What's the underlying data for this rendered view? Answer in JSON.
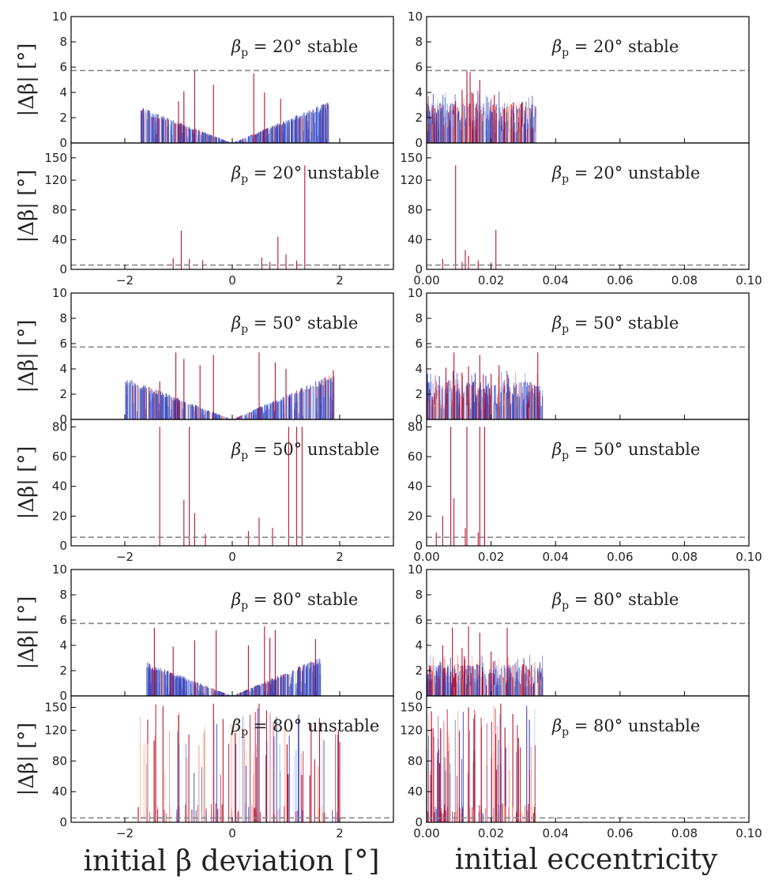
{
  "chart_data": {
    "type": "bar",
    "layout": "3 groups x 2 rows x 2 columns",
    "columns": [
      {
        "xlabel": "initial β deviation [°]",
        "xlim": [
          -3,
          3
        ],
        "xticks": [
          -2,
          0,
          2
        ],
        "xtick_labels": [
          "−2",
          "0",
          "2"
        ]
      },
      {
        "xlabel": "initial eccentricity",
        "xlim": [
          0.0,
          0.1
        ],
        "xticks": [
          0.0,
          0.02,
          0.04,
          0.06,
          0.08,
          0.1
        ],
        "xtick_labels": [
          "0.00",
          "0.02",
          "0.04",
          "0.06",
          "0.08",
          "0.10"
        ]
      }
    ],
    "threshold_line": 5.73,
    "color_scale": [
      "#3b4cc0",
      "#8fb1fe",
      "#dddcdc",
      "#f59f80",
      "#b40426"
    ],
    "groups": [
      {
        "beta_p": "20°",
        "stable": {
          "label": "β_p = 20° stable",
          "ylabel": "|Δβ| [°]",
          "ylim": [
            0,
            10
          ],
          "yticks": [
            0,
            2,
            4,
            6,
            8,
            10
          ]
        },
        "unstable": {
          "label": "β_p = 20° unstable",
          "ylabel": "|Δβ| [°]",
          "ylim": [
            0,
            170
          ],
          "yticks": [
            0,
            40,
            80,
            120,
            150
          ]
        }
      },
      {
        "beta_p": "50°",
        "stable": {
          "label": "β_p = 50° stable",
          "ylabel": "|Δβ| [°]",
          "ylim": [
            0,
            10
          ],
          "yticks": [
            0,
            2,
            4,
            6,
            8,
            10
          ]
        },
        "unstable": {
          "label": "β_p = 50° unstable",
          "ylabel": "|Δβ| [°]",
          "ylim": [
            0,
            85
          ],
          "yticks": [
            0,
            20,
            40,
            60,
            80
          ]
        }
      },
      {
        "beta_p": "80°",
        "stable": {
          "label": "β_p = 80° stable",
          "ylabel": "|Δβ| [°]",
          "ylim": [
            0,
            10
          ],
          "yticks": [
            0,
            2,
            4,
            6,
            8,
            10
          ]
        },
        "unstable": {
          "label": "β_p = 80° unstable",
          "ylabel": "|Δβ| [°]",
          "ylim": [
            0,
            165
          ],
          "yticks": [
            0,
            40,
            80,
            120,
            150
          ]
        }
      }
    ],
    "series": [
      {
        "panel": "20° stable",
        "column": "beta",
        "v_shape": {
          "x_range": [
            -1.7,
            1.8
          ],
          "slope_left": 1.6,
          "slope_right": 1.75
        },
        "spikes": [
          [
            -0.7,
            5.7
          ],
          [
            -0.35,
            4.6
          ],
          [
            -0.9,
            4.1
          ],
          [
            0.4,
            5.5
          ],
          [
            0.6,
            4.0
          ],
          [
            0.9,
            3.5
          ],
          [
            -1.0,
            3.3
          ]
        ]
      },
      {
        "panel": "20° stable",
        "column": "ecc",
        "cluster": {
          "x_range": [
            0.0,
            0.034
          ],
          "y_max": 3.2
        },
        "spikes": [
          [
            0.0125,
            5.7
          ],
          [
            0.0135,
            5.6
          ],
          [
            0.0165,
            5.0
          ],
          [
            0.011,
            4.2
          ],
          [
            0.014,
            4.0
          ],
          [
            0.021,
            3.8
          ],
          [
            0.009,
            3.3
          ],
          [
            0.002,
            3.0
          ]
        ]
      },
      {
        "panel": "20° unstable",
        "column": "beta",
        "spikes": [
          [
            1.35,
            140
          ],
          [
            -0.95,
            52
          ],
          [
            0.85,
            44
          ],
          [
            -1.1,
            15
          ],
          [
            -0.8,
            14
          ],
          [
            -0.55,
            12
          ],
          [
            0.55,
            16
          ],
          [
            1.0,
            20
          ],
          [
            1.2,
            12
          ],
          [
            0.7,
            10
          ]
        ]
      },
      {
        "panel": "20° unstable",
        "column": "ecc",
        "spikes": [
          [
            0.009,
            140
          ],
          [
            0.0215,
            53
          ],
          [
            0.012,
            26
          ],
          [
            0.005,
            14
          ],
          [
            0.011,
            10
          ],
          [
            0.013,
            18
          ],
          [
            0.016,
            12
          ],
          [
            0.02,
            9
          ]
        ]
      },
      {
        "panel": "50° stable",
        "column": "beta",
        "v_shape": {
          "x_range": [
            -2.0,
            1.9
          ],
          "slope_left": 1.6,
          "slope_right": 1.85
        },
        "spikes": [
          [
            -1.05,
            5.3
          ],
          [
            -0.6,
            4.3
          ],
          [
            -0.35,
            5.1
          ],
          [
            0.5,
            5.3
          ],
          [
            0.8,
            4.5
          ],
          [
            1.0,
            4.0
          ],
          [
            -0.9,
            4.8
          ],
          [
            1.88,
            3.9
          ],
          [
            -1.35,
            3.0
          ]
        ]
      },
      {
        "panel": "50° stable",
        "column": "ecc",
        "cluster": {
          "x_range": [
            0.0,
            0.036
          ],
          "y_max": 3.0
        },
        "spikes": [
          [
            0.0085,
            5.3
          ],
          [
            0.0345,
            5.3
          ],
          [
            0.0165,
            5.1
          ],
          [
            0.0225,
            4.3
          ],
          [
            0.013,
            4.2
          ],
          [
            0.02,
            3.6
          ],
          [
            0.006,
            4.1
          ],
          [
            0.011,
            3.7
          ]
        ]
      },
      {
        "panel": "50° unstable",
        "column": "beta",
        "spikes": [
          [
            -1.35,
            80
          ],
          [
            -0.8,
            80
          ],
          [
            1.05,
            80
          ],
          [
            1.2,
            80
          ],
          [
            1.3,
            80
          ],
          [
            -0.9,
            31
          ],
          [
            -0.7,
            22
          ],
          [
            0.5,
            19
          ],
          [
            0.3,
            10
          ],
          [
            -0.5,
            8
          ],
          [
            0.75,
            12
          ]
        ]
      },
      {
        "panel": "50° unstable",
        "column": "ecc",
        "spikes": [
          [
            0.0075,
            80
          ],
          [
            0.0125,
            80
          ],
          [
            0.0165,
            80
          ],
          [
            0.018,
            80
          ],
          [
            0.0085,
            32
          ],
          [
            0.005,
            20
          ],
          [
            0.012,
            12
          ],
          [
            0.003,
            9
          ],
          [
            0.016,
            9
          ]
        ]
      },
      {
        "panel": "80° stable",
        "column": "beta",
        "v_shape": {
          "x_range": [
            -1.6,
            1.65
          ],
          "slope_left": 1.6,
          "slope_right": 1.8
        },
        "spikes": [
          [
            -1.45,
            5.4
          ],
          [
            -0.3,
            5.2
          ],
          [
            0.6,
            5.5
          ],
          [
            0.8,
            5.2
          ],
          [
            0.7,
            4.6
          ],
          [
            -0.7,
            4.4
          ],
          [
            1.55,
            4.5
          ],
          [
            -1.1,
            3.9
          ],
          [
            0.3,
            4.0
          ]
        ]
      },
      {
        "panel": "80° stable",
        "column": "ecc",
        "cluster": {
          "x_range": [
            0.0,
            0.036
          ],
          "y_max": 2.5
        },
        "spikes": [
          [
            0.008,
            5.4
          ],
          [
            0.013,
            5.5
          ],
          [
            0.0165,
            5.0
          ],
          [
            0.025,
            5.4
          ],
          [
            0.005,
            4.0
          ],
          [
            0.011,
            3.8
          ],
          [
            0.02,
            3.5
          ],
          [
            0.03,
            2.5
          ]
        ]
      },
      {
        "panel": "80° unstable",
        "column": "beta",
        "cluster": {
          "x_range": [
            -1.75,
            2.0
          ],
          "y_max": 155
        },
        "spikes": [
          [
            2.0,
            105
          ],
          [
            -1.75,
            20
          ],
          [
            -0.35,
            155
          ],
          [
            0.5,
            155
          ],
          [
            -1.0,
            140
          ]
        ]
      },
      {
        "panel": "80° unstable",
        "column": "ecc",
        "cluster": {
          "x_range": [
            0.0,
            0.034
          ],
          "y_max": 155
        },
        "spikes": [
          [
            0.0285,
            110
          ],
          [
            0.0335,
            20
          ],
          [
            0.0015,
            145
          ],
          [
            0.013,
            150
          ],
          [
            0.023,
            155
          ]
        ]
      }
    ]
  }
}
